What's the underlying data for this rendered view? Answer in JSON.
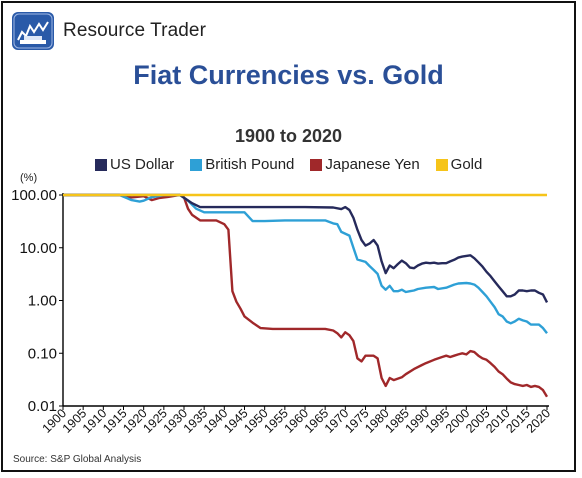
{
  "header": {
    "brand": "Resource Trader",
    "logo_icon": "resource-trader-logo-icon"
  },
  "colors": {
    "title": "#2a4f97",
    "us_dollar": "#262a5b",
    "british_pound": "#2ea0d6",
    "japanese_yen": "#a0282a",
    "gold": "#f6c419"
  },
  "source": "Source: S&P Global Analysis",
  "chart_data": {
    "type": "line",
    "title": "Fiat Currencies vs. Gold",
    "subtitle": "1900 to 2020",
    "ylabel": "(%)",
    "yscale": "log",
    "ylim": [
      0.01,
      100
    ],
    "xlim": [
      1900,
      2020
    ],
    "yticks": [
      "100.00",
      "10.00",
      "1.00",
      "0.10",
      "0.01"
    ],
    "yvals": [
      100,
      10,
      1,
      0.1,
      0.01
    ],
    "xticks": [
      "1900",
      "1905",
      "1910",
      "1915",
      "1920",
      "1925",
      "1930",
      "1935",
      "1940",
      "1945",
      "1950",
      "1955",
      "1960",
      "1965",
      "1970",
      "1975",
      "1980",
      "1985",
      "1990",
      "1995",
      "2000",
      "2005",
      "2010",
      "2015",
      "2020"
    ],
    "legend_position": "top",
    "series": [
      {
        "name": "US Dollar",
        "color": "#262a5b",
        "points": [
          [
            1900,
            100
          ],
          [
            1929,
            100
          ],
          [
            1932,
            70
          ],
          [
            1934,
            59
          ],
          [
            1940,
            59
          ],
          [
            1950,
            59
          ],
          [
            1960,
            59
          ],
          [
            1967,
            58
          ],
          [
            1969,
            54
          ],
          [
            1970,
            59
          ],
          [
            1971,
            52
          ],
          [
            1972,
            37
          ],
          [
            1973,
            22
          ],
          [
            1974,
            14
          ],
          [
            1975,
            11
          ],
          [
            1976,
            12
          ],
          [
            1977,
            14
          ],
          [
            1978,
            11
          ],
          [
            1979,
            5.5
          ],
          [
            1980,
            3.3
          ],
          [
            1981,
            4.6
          ],
          [
            1982,
            4.1
          ],
          [
            1983,
            4.9
          ],
          [
            1984,
            5.7
          ],
          [
            1985,
            5.1
          ],
          [
            1986,
            4.2
          ],
          [
            1987,
            4.1
          ],
          [
            1988,
            4.6
          ],
          [
            1989,
            5.0
          ],
          [
            1990,
            5.2
          ],
          [
            1991,
            5.1
          ],
          [
            1992,
            5.2
          ],
          [
            1993,
            5.0
          ],
          [
            1994,
            5.1
          ],
          [
            1995,
            5.1
          ],
          [
            1996,
            5.5
          ],
          [
            1997,
            5.9
          ],
          [
            1998,
            6.5
          ],
          [
            1999,
            6.8
          ],
          [
            2000,
            7.0
          ],
          [
            2001,
            7.2
          ],
          [
            2002,
            6.3
          ],
          [
            2003,
            5.3
          ],
          [
            2004,
            4.4
          ],
          [
            2005,
            3.5
          ],
          [
            2006,
            2.9
          ],
          [
            2007,
            2.3
          ],
          [
            2008,
            1.85
          ],
          [
            2009,
            1.5
          ],
          [
            2010,
            1.2
          ],
          [
            2011,
            1.2
          ],
          [
            2012,
            1.3
          ],
          [
            2013,
            1.55
          ],
          [
            2014,
            1.55
          ],
          [
            2015,
            1.5
          ],
          [
            2016,
            1.55
          ],
          [
            2017,
            1.55
          ],
          [
            2018,
            1.4
          ],
          [
            2019,
            1.3
          ],
          [
            2020,
            0.92
          ]
        ]
      },
      {
        "name": "British Pound",
        "color": "#2ea0d6",
        "points": [
          [
            1900,
            100
          ],
          [
            1914,
            100
          ],
          [
            1917,
            80
          ],
          [
            1919,
            75
          ],
          [
            1920,
            78
          ],
          [
            1922,
            91
          ],
          [
            1925,
            99
          ],
          [
            1929,
            100
          ],
          [
            1931,
            78
          ],
          [
            1933,
            55
          ],
          [
            1935,
            47
          ],
          [
            1938,
            47
          ],
          [
            1945,
            47
          ],
          [
            1947,
            32
          ],
          [
            1950,
            32
          ],
          [
            1955,
            33
          ],
          [
            1960,
            33
          ],
          [
            1965,
            33
          ],
          [
            1967,
            29
          ],
          [
            1968,
            28
          ],
          [
            1969,
            20
          ],
          [
            1971,
            17
          ],
          [
            1972,
            10
          ],
          [
            1973,
            6.0
          ],
          [
            1975,
            5.4
          ],
          [
            1976,
            4.5
          ],
          [
            1977,
            3.8
          ],
          [
            1978,
            3.2
          ],
          [
            1979,
            1.9
          ],
          [
            1980,
            1.6
          ],
          [
            1981,
            1.9
          ],
          [
            1982,
            1.5
          ],
          [
            1983,
            1.5
          ],
          [
            1984,
            1.6
          ],
          [
            1985,
            1.45
          ],
          [
            1986,
            1.5
          ],
          [
            1987,
            1.55
          ],
          [
            1988,
            1.65
          ],
          [
            1990,
            1.75
          ],
          [
            1992,
            1.8
          ],
          [
            1993,
            1.65
          ],
          [
            1995,
            1.75
          ],
          [
            1997,
            2.0
          ],
          [
            1998,
            2.1
          ],
          [
            2000,
            2.15
          ],
          [
            2001,
            2.1
          ],
          [
            2002,
            2.0
          ],
          [
            2003,
            1.75
          ],
          [
            2004,
            1.45
          ],
          [
            2005,
            1.2
          ],
          [
            2006,
            0.95
          ],
          [
            2007,
            0.75
          ],
          [
            2008,
            0.55
          ],
          [
            2009,
            0.5
          ],
          [
            2010,
            0.4
          ],
          [
            2011,
            0.37
          ],
          [
            2012,
            0.4
          ],
          [
            2013,
            0.45
          ],
          [
            2014,
            0.42
          ],
          [
            2015,
            0.4
          ],
          [
            2016,
            0.35
          ],
          [
            2017,
            0.35
          ],
          [
            2018,
            0.35
          ],
          [
            2019,
            0.3
          ],
          [
            2020,
            0.24
          ]
        ]
      },
      {
        "name": "Japanese Yen",
        "color": "#a0282a",
        "points": [
          [
            1900,
            100
          ],
          [
            1914,
            100
          ],
          [
            1917,
            90
          ],
          [
            1920,
            95
          ],
          [
            1922,
            80
          ],
          [
            1924,
            88
          ],
          [
            1926,
            92
          ],
          [
            1929,
            100
          ],
          [
            1930,
            90
          ],
          [
            1931,
            55
          ],
          [
            1932,
            42
          ],
          [
            1934,
            33
          ],
          [
            1938,
            33
          ],
          [
            1940,
            28
          ],
          [
            1941,
            22
          ],
          [
            1942,
            1.5
          ],
          [
            1943,
            0.95
          ],
          [
            1944,
            0.7
          ],
          [
            1945,
            0.5
          ],
          [
            1947,
            0.38
          ],
          [
            1949,
            0.3
          ],
          [
            1952,
            0.29
          ],
          [
            1955,
            0.29
          ],
          [
            1960,
            0.29
          ],
          [
            1965,
            0.29
          ],
          [
            1967,
            0.27
          ],
          [
            1968,
            0.24
          ],
          [
            1969,
            0.2
          ],
          [
            1970,
            0.25
          ],
          [
            1971,
            0.22
          ],
          [
            1972,
            0.17
          ],
          [
            1973,
            0.08
          ],
          [
            1974,
            0.07
          ],
          [
            1975,
            0.09
          ],
          [
            1977,
            0.09
          ],
          [
            1978,
            0.08
          ],
          [
            1979,
            0.034
          ],
          [
            1980,
            0.024
          ],
          [
            1981,
            0.034
          ],
          [
            1982,
            0.031
          ],
          [
            1984,
            0.035
          ],
          [
            1985,
            0.04
          ],
          [
            1987,
            0.05
          ],
          [
            1989,
            0.06
          ],
          [
            1990,
            0.065
          ],
          [
            1992,
            0.075
          ],
          [
            1994,
            0.085
          ],
          [
            1995,
            0.09
          ],
          [
            1996,
            0.085
          ],
          [
            1997,
            0.09
          ],
          [
            1998,
            0.095
          ],
          [
            1999,
            0.1
          ],
          [
            2000,
            0.095
          ],
          [
            2001,
            0.11
          ],
          [
            2002,
            0.105
          ],
          [
            2003,
            0.09
          ],
          [
            2004,
            0.08
          ],
          [
            2005,
            0.075
          ],
          [
            2006,
            0.065
          ],
          [
            2007,
            0.055
          ],
          [
            2008,
            0.045
          ],
          [
            2009,
            0.04
          ],
          [
            2010,
            0.033
          ],
          [
            2011,
            0.028
          ],
          [
            2012,
            0.026
          ],
          [
            2013,
            0.025
          ],
          [
            2014,
            0.024
          ],
          [
            2015,
            0.025
          ],
          [
            2016,
            0.023
          ],
          [
            2017,
            0.024
          ],
          [
            2018,
            0.023
          ],
          [
            2019,
            0.02
          ],
          [
            2020,
            0.015
          ]
        ]
      },
      {
        "name": "Gold",
        "color": "#f6c419",
        "points": [
          [
            1900,
            100
          ],
          [
            2020,
            100
          ]
        ]
      }
    ]
  }
}
